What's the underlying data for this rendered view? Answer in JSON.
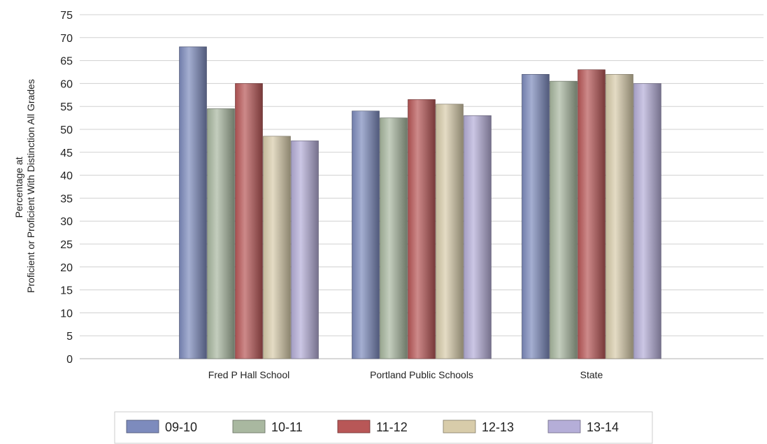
{
  "chart_data": {
    "type": "bar",
    "title": "",
    "xlabel": "",
    "ylabel_lines": [
      "Percentage at",
      "Proficient or Proficient With Distinction All Grades"
    ],
    "ylim": [
      0,
      75
    ],
    "ytick_step": 5,
    "grid": true,
    "legend_position": "bottom",
    "categories": [
      "Fred P Hall School",
      "Portland Public Schools",
      "State"
    ],
    "series": [
      {
        "name": "09-10",
        "color": "#7d8bbd",
        "values": [
          68,
          54,
          62
        ]
      },
      {
        "name": "10-11",
        "color": "#a9b8a0",
        "values": [
          54.5,
          52.5,
          60.5
        ]
      },
      {
        "name": "11-12",
        "color": "#b85757",
        "values": [
          60,
          56.5,
          63
        ]
      },
      {
        "name": "12-13",
        "color": "#d8ccaa",
        "values": [
          48.5,
          55.5,
          62
        ]
      },
      {
        "name": "13-14",
        "color": "#b5aed8",
        "values": [
          47.5,
          53,
          60
        ]
      }
    ]
  }
}
